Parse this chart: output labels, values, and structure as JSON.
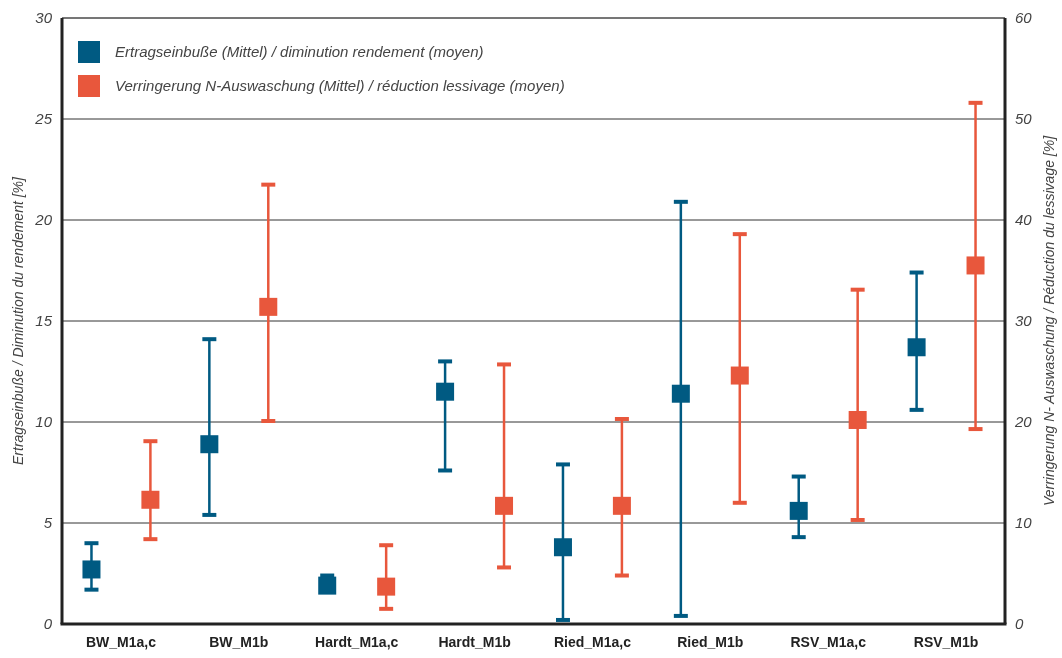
{
  "chart_data": {
    "type": "scatter",
    "ylabel": "Ertragseinbuße / Diminution du rendement [%]",
    "y2label": "Verringerung N- Auswaschung / Réduction du lessivage [%]",
    "categories": [
      "BW_M1a,c",
      "BW_M1b",
      "Hardt_M1a,c",
      "Hardt_M1b",
      "Ried_M1a,c",
      "Ried_M1b",
      "RSV_M1a,c",
      "RSV_M1b"
    ],
    "ylim": [
      0,
      30
    ],
    "yticks": [
      0,
      5,
      10,
      15,
      20,
      25,
      30
    ],
    "y2lim": [
      0,
      60
    ],
    "y2ticks": [
      0,
      10,
      20,
      30,
      40,
      50,
      60
    ],
    "grid": "y",
    "legend": "top left",
    "marker": "square",
    "series": [
      {
        "name": "Ertragseinbuße (Mittel) / diminution rendement (moyen)",
        "color": "#005a82",
        "values": [
          2.7,
          8.9,
          1.9,
          11.5,
          3.8,
          11.4,
          5.6,
          13.7
        ],
        "errors": [
          [
            1.7,
            4.0
          ],
          [
            5.4,
            14.1
          ],
          [
            1.6,
            2.4
          ],
          [
            7.6,
            13.0
          ],
          [
            0.2,
            7.9
          ],
          [
            0.4,
            20.9
          ],
          [
            4.3,
            7.3
          ],
          [
            10.6,
            17.4
          ]
        ]
      },
      {
        "name": "Verringerung N-Auswaschung (Mittel) / réduction lessivage (moyen)",
        "color": "#e8573c",
        "axis": "y2",
        "values": [
          12.3,
          31.4,
          3.7,
          11.7,
          11.7,
          24.6,
          20.2,
          35.5
        ],
        "errors": [
          [
            8.4,
            18.1
          ],
          [
            20.1,
            43.5
          ],
          [
            1.5,
            7.8
          ],
          [
            5.6,
            25.7
          ],
          [
            4.8,
            20.3
          ],
          [
            12.0,
            38.6
          ],
          [
            10.3,
            33.1
          ],
          [
            19.3,
            51.6
          ]
        ]
      }
    ]
  }
}
